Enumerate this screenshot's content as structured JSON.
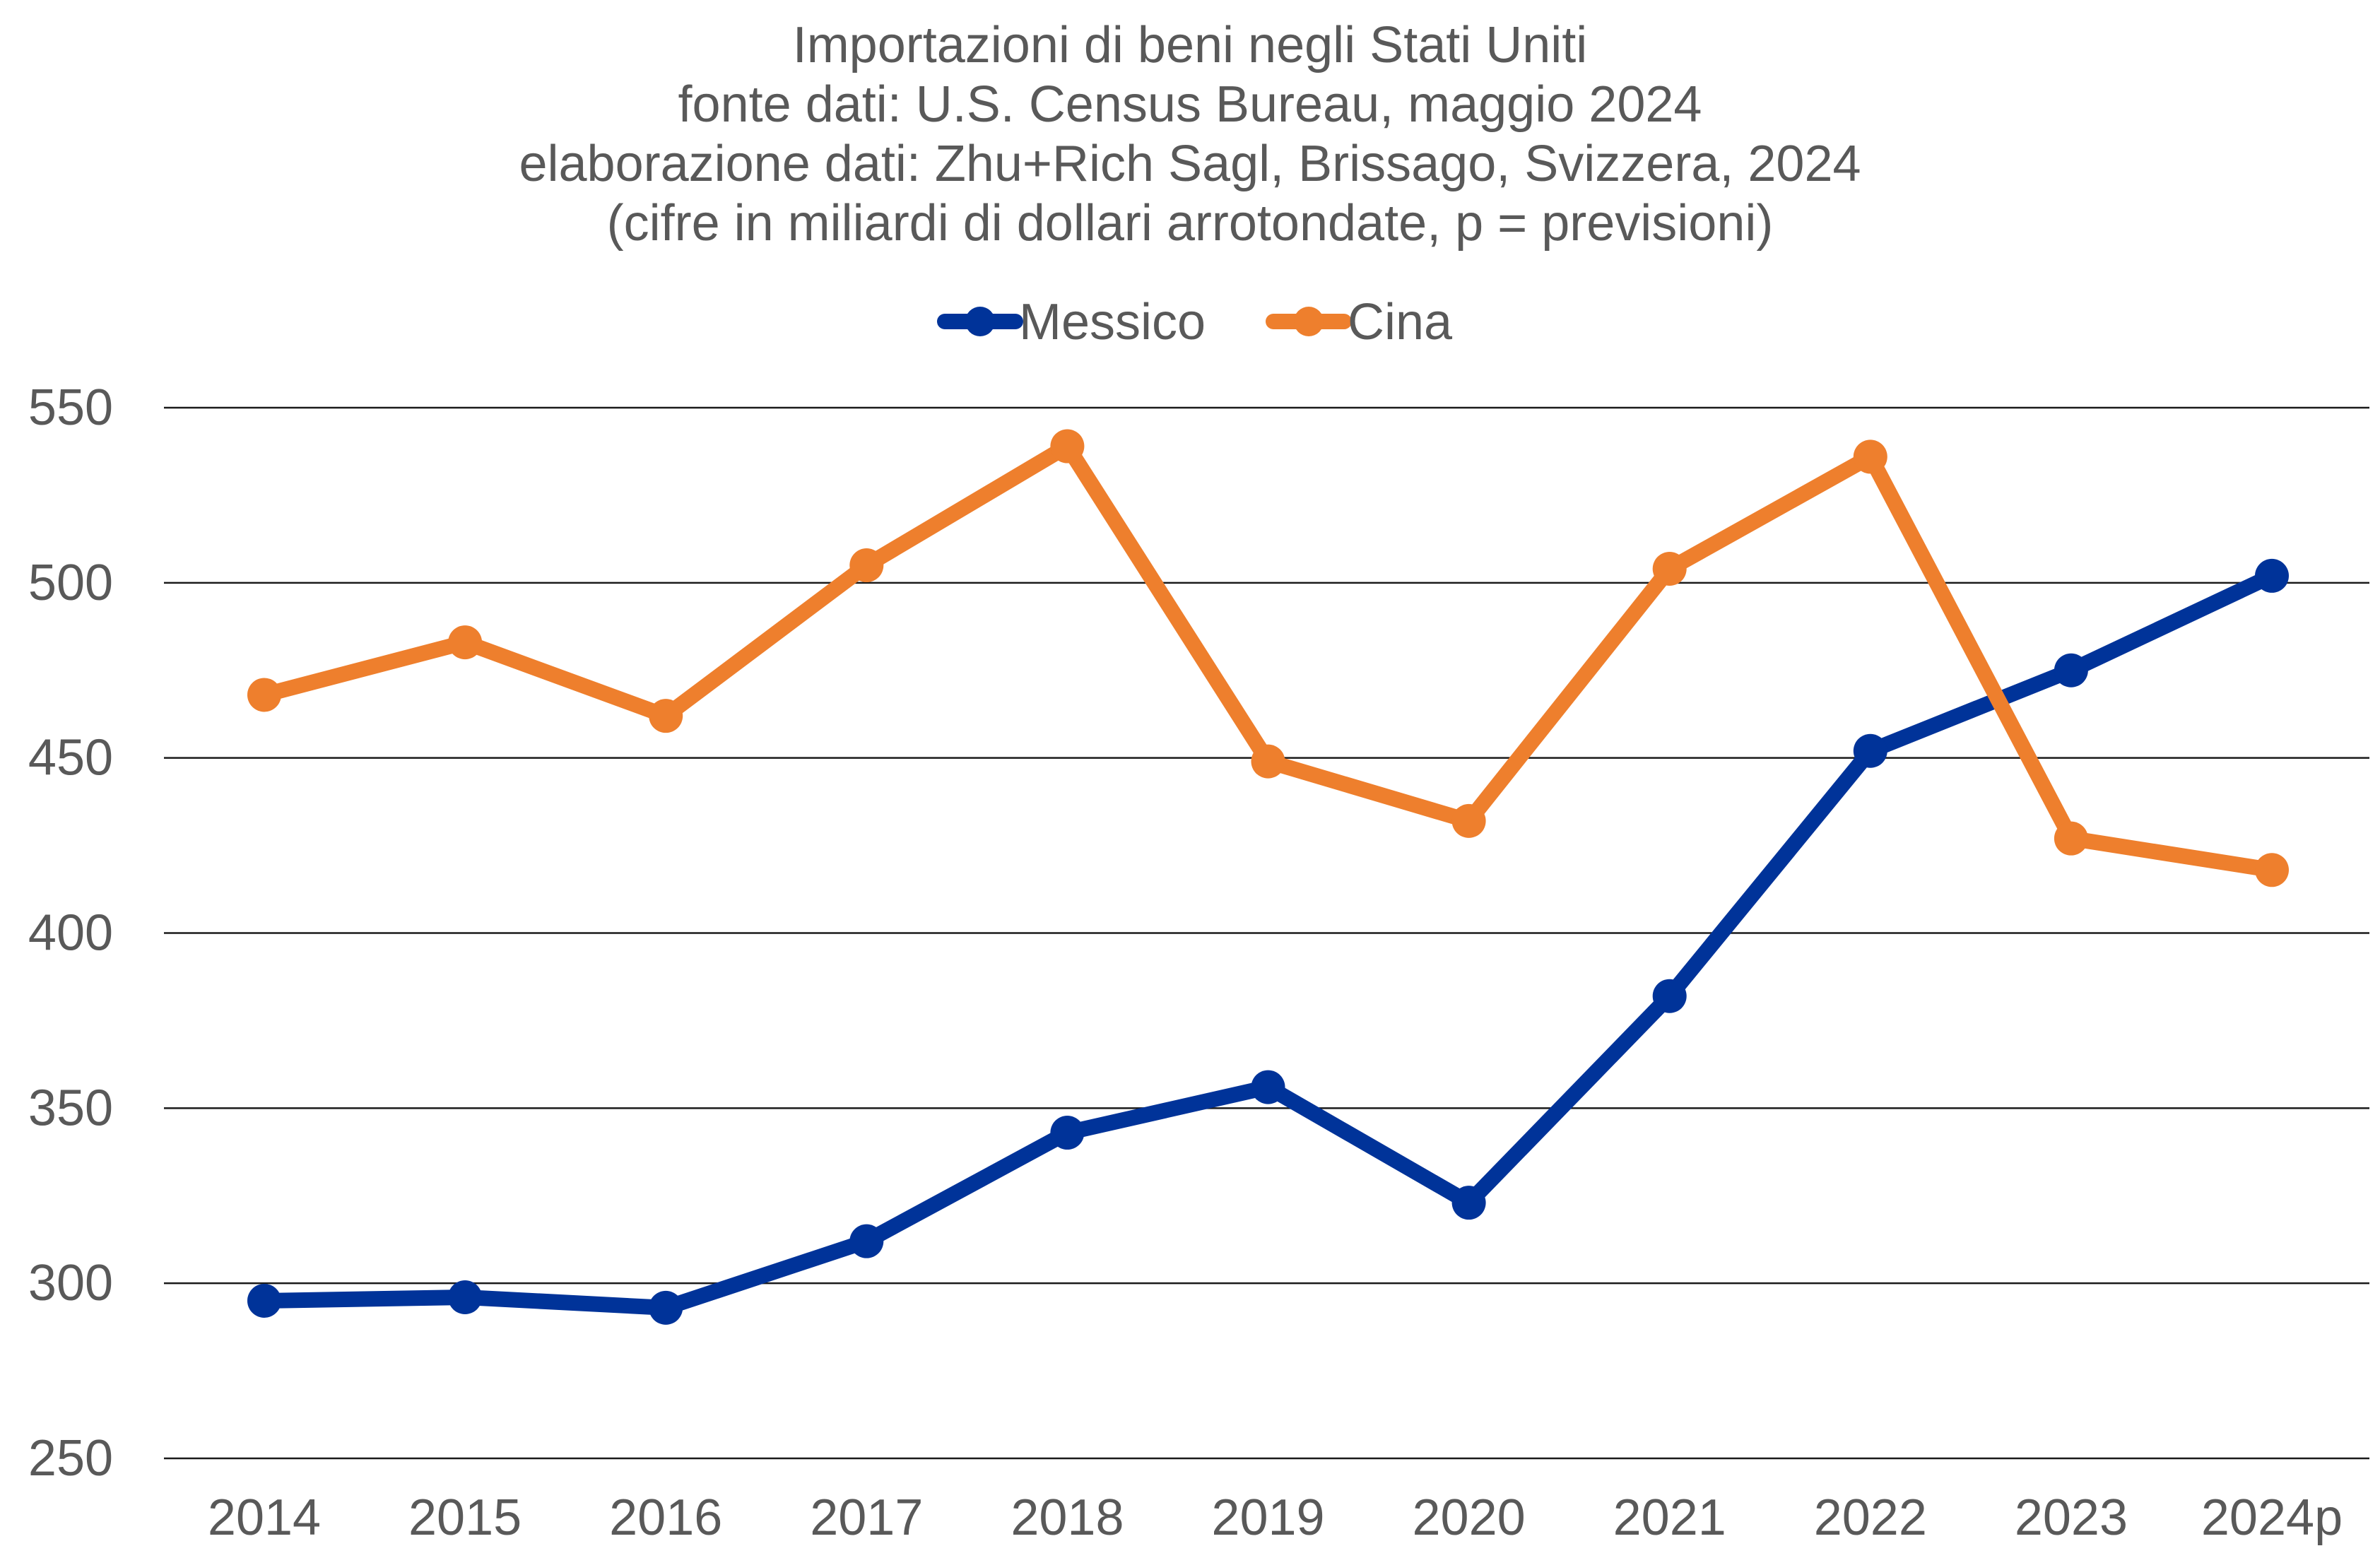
{
  "chart_data": {
    "type": "line",
    "title_lines": [
      "Importazioni di beni negli Stati Uniti",
      "fonte dati: U.S. Census Bureau, maggio 2024",
      "elaborazione dati: Zhu+Rich Sagl, Brissago, Svizzera, 2024",
      "(cifre in miliardi di dollari arrotondate, p = previsioni)"
    ],
    "categories": [
      "2014",
      "2015",
      "2016",
      "2017",
      "2018",
      "2019",
      "2020",
      "2021",
      "2022",
      "2023",
      "2024p"
    ],
    "series": [
      {
        "name": "Messico",
        "color": "#003399",
        "values": [
          295,
          296,
          293,
          312,
          343,
          356,
          323,
          382,
          452,
          475,
          502
        ]
      },
      {
        "name": "Cina",
        "color": "#ee7f2d",
        "values": [
          468,
          483,
          462,
          505,
          539,
          449,
          432,
          504,
          536,
          427,
          418
        ]
      }
    ],
    "y_ticks": [
      "250",
      "300",
      "350",
      "400",
      "450",
      "500",
      "550"
    ],
    "ylim": [
      250,
      550
    ],
    "grid": true,
    "legend_position": "top-center",
    "xlabel": "",
    "ylabel": "",
    "colors": {
      "text": "#595959",
      "grid": "#1a1a1a",
      "background": "#ffffff"
    }
  }
}
